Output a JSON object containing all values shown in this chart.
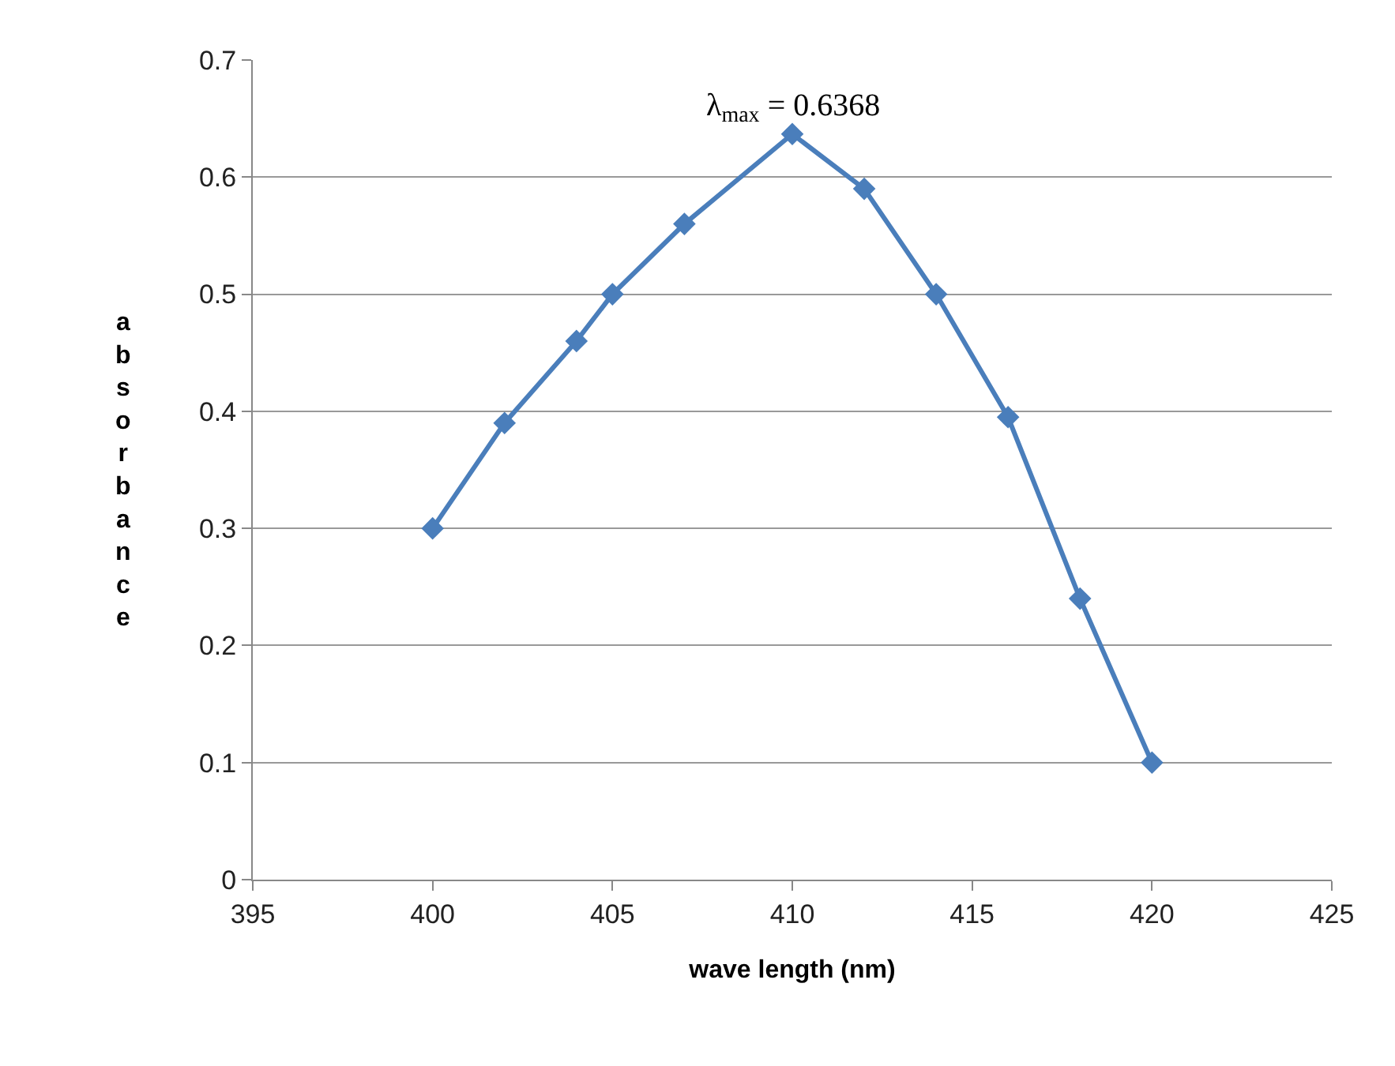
{
  "chart_data": {
    "type": "line",
    "xlabel": "wave length (nm)",
    "ylabel": "absorbance",
    "x": [
      400,
      402,
      404,
      405,
      407,
      410,
      412,
      414,
      416,
      418,
      420
    ],
    "series": [
      {
        "color": "#4a7ebb",
        "values": [
          0.3,
          0.39,
          0.46,
          0.5,
          0.56,
          0.6368,
          0.59,
          0.5,
          0.395,
          0.24,
          0.1
        ]
      }
    ],
    "xlim": [
      395,
      425
    ],
    "xticks": [
      395,
      400,
      405,
      410,
      415,
      420,
      425
    ],
    "ylim": [
      0,
      0.7
    ],
    "yticks": [
      0,
      0.1,
      0.2,
      0.3,
      0.4,
      0.5,
      0.6,
      0.7
    ],
    "grid": "y",
    "marker": "diamond",
    "line_style": "solid",
    "legend": false,
    "annotations": [
      {
        "text": "λ$_{max}$ = 0.6368",
        "x": 410,
        "y": 0.6368
      }
    ]
  }
}
